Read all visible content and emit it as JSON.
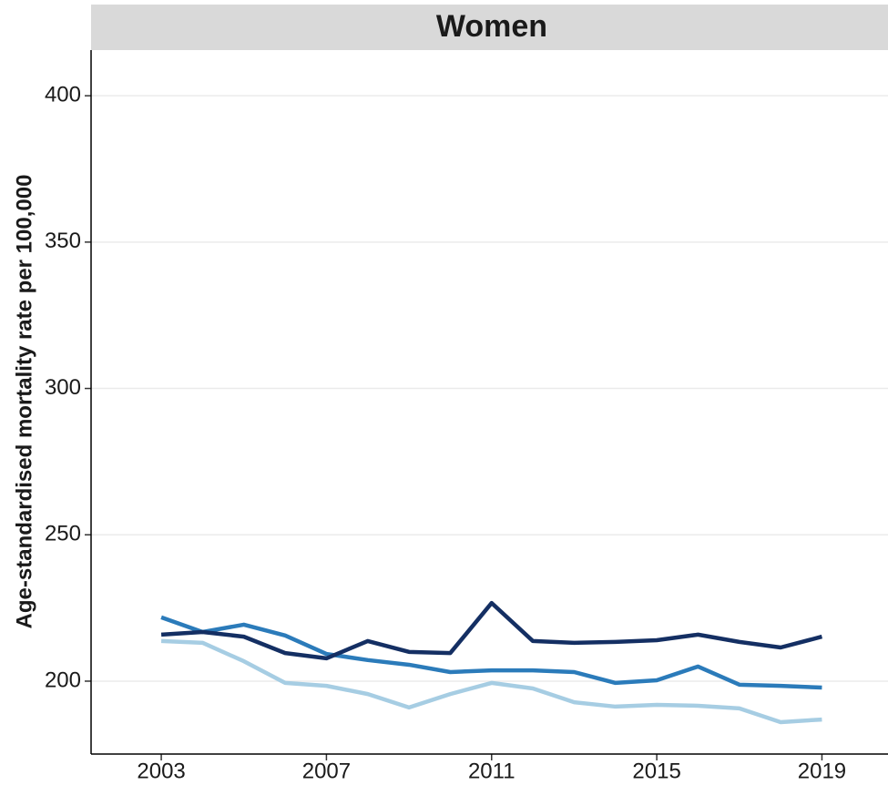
{
  "chart_data": {
    "type": "line",
    "title": "Women",
    "y_label": "Age-standardised mortality rate per 100,000",
    "x": [
      2003,
      2004,
      2005,
      2006,
      2007,
      2008,
      2009,
      2010,
      2011,
      2012,
      2013,
      2014,
      2015,
      2016,
      2017,
      2018,
      2019
    ],
    "series": [
      {
        "color": "#a6cde3",
        "values": [
          213.7,
          213.1,
          206.8,
          199.4,
          198.4,
          195.6,
          191,
          195.6,
          199.4,
          197.5,
          192.8,
          191.3,
          191.9,
          191.6,
          190.7,
          186,
          186.9
        ]
      },
      {
        "color": "#2b7bba",
        "values": [
          221.8,
          216.8,
          219.3,
          215.6,
          209.3,
          207.2,
          205.6,
          203.1,
          203.7,
          203.7,
          203.1,
          199.4,
          200.3,
          205,
          198.8,
          198.4,
          197.8
        ]
      },
      {
        "color": "#142f63",
        "values": [
          215.9,
          216.8,
          215.2,
          209.6,
          207.8,
          213.7,
          210,
          209.6,
          226.7,
          213.7,
          213.1,
          213.4,
          214,
          215.9,
          213.4,
          211.5,
          215.2
        ]
      }
    ],
    "xlim": [
      2001.3,
      2020.6
    ],
    "xticks": [
      2003,
      2007,
      2011,
      2015,
      2019
    ],
    "ylim": [
      175.1,
      415.6
    ],
    "yticks": [
      200,
      250,
      300,
      350,
      400
    ],
    "grid": true
  }
}
